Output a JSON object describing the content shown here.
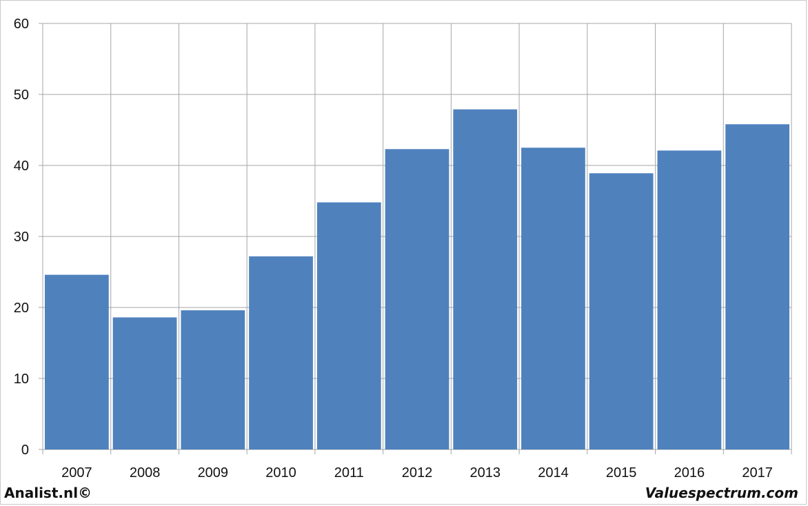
{
  "chart_data": {
    "type": "bar",
    "categories": [
      "2007",
      "2008",
      "2009",
      "2010",
      "2011",
      "2012",
      "2013",
      "2014",
      "2015",
      "2016",
      "2017"
    ],
    "values": [
      24.6,
      18.6,
      19.6,
      27.2,
      34.8,
      42.3,
      47.9,
      42.5,
      38.9,
      42.1,
      45.8
    ],
    "ylim": [
      0,
      60
    ],
    "yticks": [
      0,
      10,
      20,
      30,
      40,
      50,
      60
    ],
    "grid": true,
    "bar_color": "#4F81BD",
    "grid_color": "#a6a6a6"
  },
  "footer": {
    "left": "Analist.nl©",
    "right": "Valuespectrum.com"
  }
}
